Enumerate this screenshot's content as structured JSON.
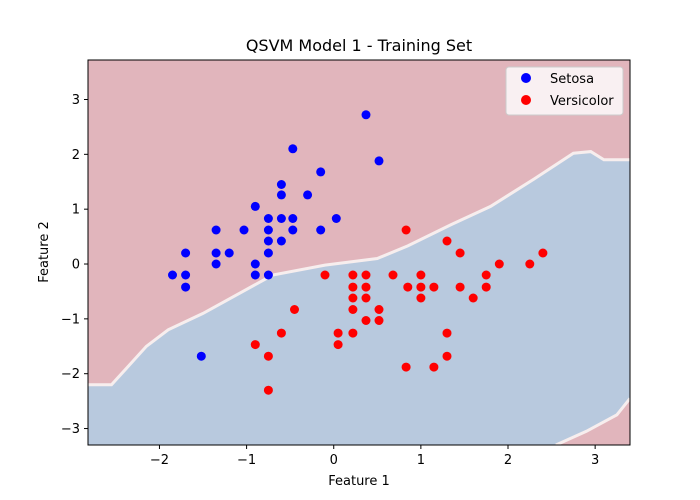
{
  "chart_data": {
    "type": "scatter",
    "title": "QSVM Model 1 - Training Set",
    "xlabel": "Feature 1",
    "ylabel": "Feature 2",
    "xlim": [
      -2.82,
      3.4
    ],
    "ylim": [
      -3.3,
      3.72
    ],
    "xticks": [
      -2,
      -1,
      0,
      1,
      2,
      3
    ],
    "yticks": [
      -3,
      -2,
      -1,
      0,
      1,
      2,
      3
    ],
    "legend_position": "top-right",
    "colors": {
      "setosa": "#0000ff",
      "versicolor": "#ff0000",
      "region_setosa": "#e1b5bc",
      "region_versicolor": "#b8c9de",
      "boundary_light": "#f7eeee"
    },
    "decision_boundary": [
      [
        -2.82,
        -2.2
      ],
      [
        -2.55,
        -2.2
      ],
      [
        -2.35,
        -1.85
      ],
      [
        -2.15,
        -1.5
      ],
      [
        -1.9,
        -1.2
      ],
      [
        -1.5,
        -0.9
      ],
      [
        -1.1,
        -0.55
      ],
      [
        -0.7,
        -0.2
      ],
      [
        -0.1,
        -0.02
      ],
      [
        0.5,
        0.1
      ],
      [
        0.85,
        0.33
      ],
      [
        1.35,
        0.72
      ],
      [
        1.8,
        1.05
      ],
      [
        2.3,
        1.55
      ],
      [
        2.75,
        2.02
      ],
      [
        2.95,
        2.05
      ],
      [
        3.1,
        1.9
      ],
      [
        3.4,
        1.9
      ]
    ],
    "lower_boundary": [
      [
        2.55,
        -3.3
      ],
      [
        2.9,
        -3.05
      ],
      [
        3.25,
        -2.75
      ],
      [
        3.4,
        -2.45
      ]
    ],
    "series": [
      {
        "name": "Setosa",
        "color": "#0000ff",
        "points": [
          [
            -1.85,
            -0.2
          ],
          [
            -1.7,
            0.2
          ],
          [
            -1.7,
            -0.2
          ],
          [
            -1.7,
            -0.42
          ],
          [
            -1.35,
            0.62
          ],
          [
            -1.35,
            0.2
          ],
          [
            -1.35,
            0.0
          ],
          [
            -1.2,
            0.2
          ],
          [
            -1.03,
            0.62
          ],
          [
            -0.9,
            1.05
          ],
          [
            -0.9,
            0.0
          ],
          [
            -0.9,
            -0.2
          ],
          [
            -0.75,
            0.83
          ],
          [
            -0.75,
            0.62
          ],
          [
            -0.75,
            0.42
          ],
          [
            -0.75,
            0.2
          ],
          [
            -0.75,
            -0.2
          ],
          [
            -0.6,
            1.45
          ],
          [
            -0.6,
            1.26
          ],
          [
            -0.6,
            0.83
          ],
          [
            -0.6,
            0.42
          ],
          [
            -0.47,
            2.1
          ],
          [
            -0.47,
            0.83
          ],
          [
            -0.47,
            0.62
          ],
          [
            -0.3,
            1.26
          ],
          [
            -0.15,
            1.68
          ],
          [
            -0.15,
            0.62
          ],
          [
            0.03,
            0.83
          ],
          [
            0.37,
            2.72
          ],
          [
            0.52,
            1.88
          ],
          [
            -1.52,
            -1.68
          ]
        ]
      },
      {
        "name": "Versicolor",
        "color": "#ff0000",
        "points": [
          [
            0.83,
            0.62
          ],
          [
            1.3,
            0.42
          ],
          [
            1.45,
            0.2
          ],
          [
            1.9,
            0.0
          ],
          [
            2.25,
            0.0
          ],
          [
            2.4,
            0.2
          ],
          [
            1.75,
            -0.2
          ],
          [
            1.75,
            -0.42
          ],
          [
            1.6,
            -0.62
          ],
          [
            1.45,
            -0.42
          ],
          [
            1.15,
            -0.42
          ],
          [
            1.0,
            -0.42
          ],
          [
            1.0,
            -0.62
          ],
          [
            1.0,
            -0.2
          ],
          [
            0.85,
            -0.42
          ],
          [
            0.68,
            -0.2
          ],
          [
            0.37,
            -0.2
          ],
          [
            0.37,
            -0.42
          ],
          [
            0.37,
            -0.62
          ],
          [
            0.37,
            -1.03
          ],
          [
            0.52,
            -0.83
          ],
          [
            0.52,
            -1.03
          ],
          [
            0.22,
            -0.2
          ],
          [
            0.22,
            -0.42
          ],
          [
            0.22,
            -0.62
          ],
          [
            0.22,
            -0.83
          ],
          [
            0.22,
            -1.26
          ],
          [
            0.05,
            -1.26
          ],
          [
            0.05,
            -1.47
          ],
          [
            -0.1,
            -0.2
          ],
          [
            -0.45,
            -0.83
          ],
          [
            -0.6,
            -1.26
          ],
          [
            -0.9,
            -1.47
          ],
          [
            -0.75,
            -1.68
          ],
          [
            -0.75,
            -2.3
          ],
          [
            1.3,
            -1.26
          ],
          [
            1.3,
            -1.68
          ],
          [
            1.15,
            -1.88
          ],
          [
            0.83,
            -1.88
          ]
        ]
      }
    ]
  }
}
